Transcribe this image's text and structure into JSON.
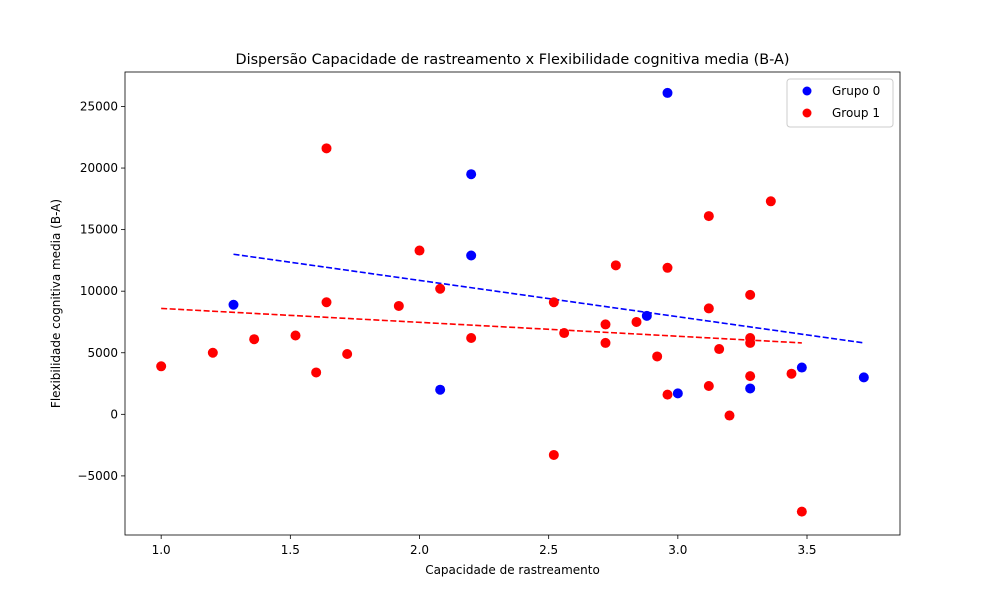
{
  "chart_data": {
    "type": "scatter",
    "title": "Dispersão Capacidade de rastreamento x Flexibilidade cognitiva media (B-A)",
    "xlabel": "Capacidade de rastreamento",
    "ylabel": "Flexibilidade cognitiva media (B-A)",
    "xlim": [
      0.86,
      3.86
    ],
    "ylim": [
      -9800,
      27800
    ],
    "x_ticks": [
      1.0,
      1.5,
      2.0,
      2.5,
      3.0,
      3.5
    ],
    "x_tick_labels": [
      "1.0",
      "1.5",
      "2.0",
      "2.5",
      "3.0",
      "3.5"
    ],
    "y_ticks": [
      -5000,
      0,
      5000,
      10000,
      15000,
      20000,
      25000
    ],
    "y_tick_labels": [
      "−5000",
      "0",
      "5000",
      "10000",
      "15000",
      "20000",
      "25000"
    ],
    "grid": false,
    "legend_position": "top-right",
    "series": [
      {
        "name": "Grupo 0",
        "color": "#0000ff",
        "points": [
          [
            1.28,
            8900
          ],
          [
            2.08,
            2000
          ],
          [
            2.2,
            19500
          ],
          [
            2.2,
            12900
          ],
          [
            2.88,
            8000
          ],
          [
            2.96,
            26100
          ],
          [
            3.0,
            1700
          ],
          [
            3.28,
            2100
          ],
          [
            3.48,
            3800
          ],
          [
            3.72,
            3000
          ]
        ],
        "trend": [
          [
            1.28,
            13000
          ],
          [
            3.72,
            5800
          ]
        ]
      },
      {
        "name": "Group 1",
        "color": "#ff0000",
        "points": [
          [
            1.0,
            3900
          ],
          [
            1.2,
            5000
          ],
          [
            1.36,
            6100
          ],
          [
            1.52,
            6400
          ],
          [
            1.6,
            3400
          ],
          [
            1.64,
            21600
          ],
          [
            1.64,
            9100
          ],
          [
            1.72,
            4900
          ],
          [
            1.92,
            8800
          ],
          [
            2.0,
            13300
          ],
          [
            2.08,
            10200
          ],
          [
            2.2,
            6200
          ],
          [
            2.52,
            9100
          ],
          [
            2.52,
            -3300
          ],
          [
            2.56,
            6600
          ],
          [
            2.72,
            7300
          ],
          [
            2.72,
            5800
          ],
          [
            2.76,
            12100
          ],
          [
            2.84,
            7500
          ],
          [
            2.92,
            4700
          ],
          [
            2.96,
            11900
          ],
          [
            2.96,
            1600
          ],
          [
            3.12,
            16100
          ],
          [
            3.12,
            8600
          ],
          [
            3.12,
            2300
          ],
          [
            3.16,
            5300
          ],
          [
            3.2,
            -100
          ],
          [
            3.28,
            9700
          ],
          [
            3.28,
            6200
          ],
          [
            3.28,
            5800
          ],
          [
            3.28,
            3100
          ],
          [
            3.36,
            17300
          ],
          [
            3.44,
            3300
          ],
          [
            3.48,
            -7900
          ]
        ],
        "trend": [
          [
            1.0,
            8600
          ],
          [
            3.48,
            5800
          ]
        ]
      }
    ]
  }
}
